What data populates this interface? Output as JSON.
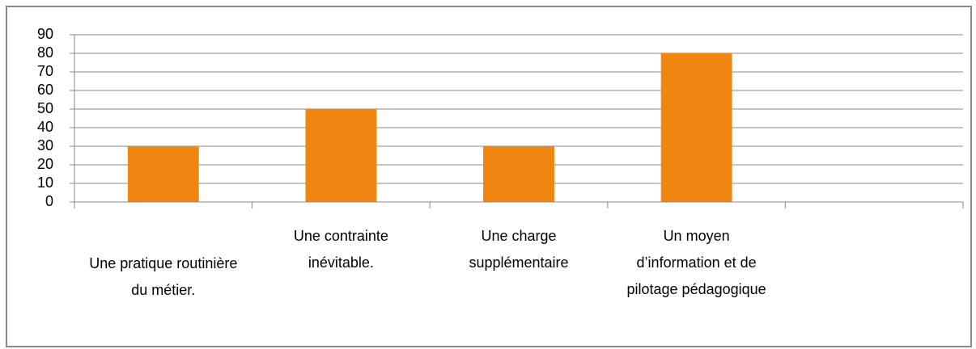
{
  "chart_data": {
    "type": "bar",
    "categories": [
      "Une pratique routinière du métier.",
      "Une contrainte inévitable.",
      "Une charge supplémentaire",
      "Un moyen d’information et de pilotage pédagogique",
      null
    ],
    "values": [
      30,
      50,
      30,
      80,
      null
    ],
    "color": "#f0850f",
    "ylim": [
      0,
      90
    ],
    "yticks": [
      0,
      10,
      20,
      30,
      40,
      50,
      60,
      70,
      80,
      90
    ],
    "grid": true
  }
}
